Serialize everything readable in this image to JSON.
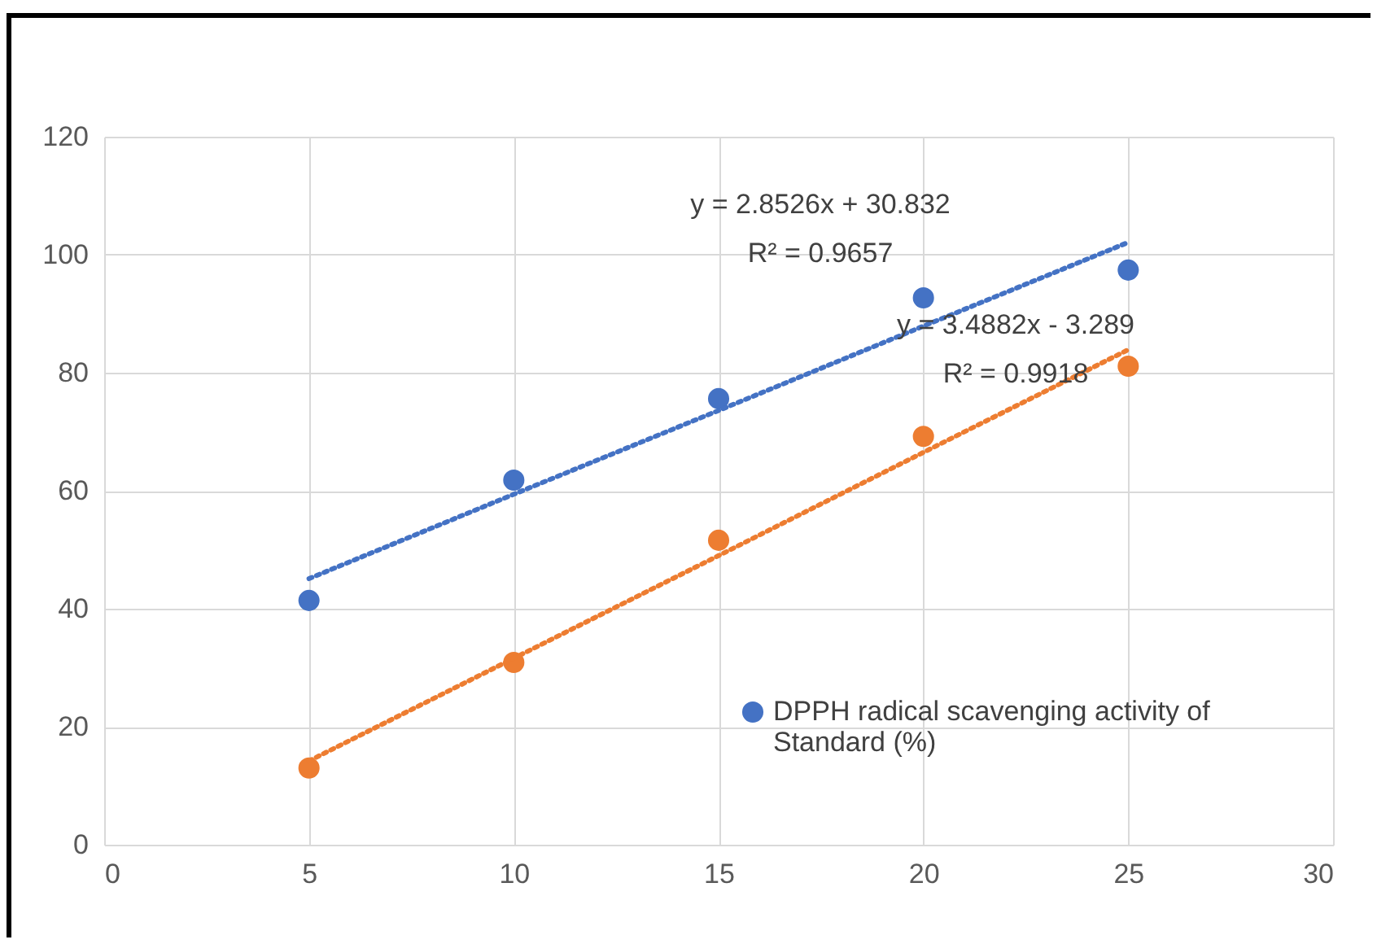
{
  "chart_data": {
    "type": "scatter",
    "x": [
      5,
      10,
      15,
      20,
      25
    ],
    "series": [
      {
        "name": "DPPH radical scavenging activity of Standard (%)",
        "color": "#4472c4",
        "type": "scatter",
        "marker": "circle",
        "values": [
          41.4,
          61.8,
          75.6,
          92.7,
          97.4
        ]
      },
      {
        "color": "#ed7d31",
        "type": "scatter",
        "marker": "circle",
        "values": [
          13.0,
          30.9,
          51.6,
          69.2,
          81.1
        ]
      },
      {
        "color": "#4472c4",
        "type": "line",
        "marker": "none",
        "values": [
          45.1,
          59.4,
          73.6,
          87.9,
          102.1
        ]
      },
      {
        "color": "#ed7d31",
        "type": "line",
        "marker": "none",
        "values": [
          14.2,
          31.6,
          49.0,
          66.5,
          83.9
        ]
      }
    ],
    "annotations": [
      "y = 2.8526x + 30.832",
      "R² = 0.9657",
      "y = 3.4882x - 3.289",
      "R² = 0.9918"
    ],
    "xlim": [
      0,
      30
    ],
    "xticks": [
      0,
      5,
      10,
      15,
      20,
      25,
      30
    ],
    "ylim": [
      0,
      120
    ],
    "yticks": [
      0,
      20,
      40,
      60,
      80,
      100,
      120
    ],
    "grid": true,
    "legend": "bottom right",
    "line_style": "dotted"
  }
}
